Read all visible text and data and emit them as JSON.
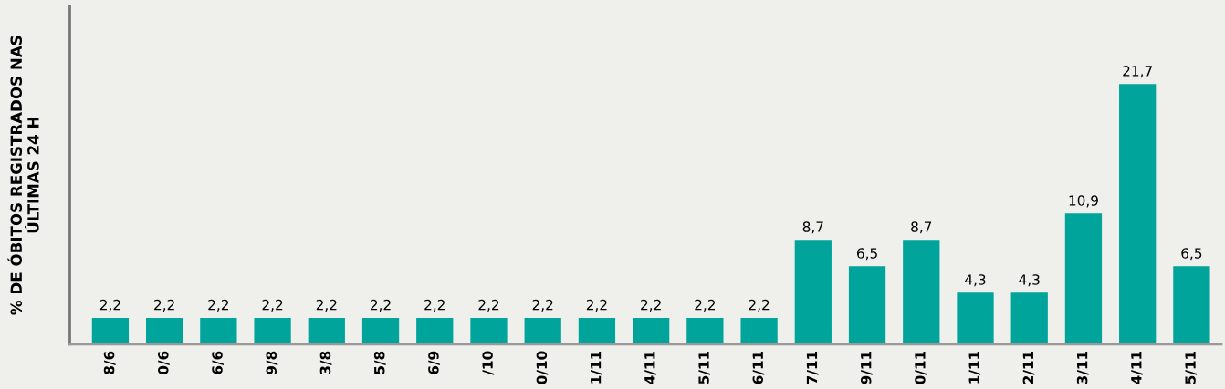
{
  "chart_data": {
    "type": "bar",
    "ylabel": "% DE ÓBITOS REGISTRADOS NAS\nÚLTIMAS 24 H",
    "categories": [
      "8/6",
      "0/6",
      "6/6",
      "9/8",
      "3/8",
      "5/8",
      "6/9",
      "/10",
      "0/10",
      "1/11",
      "4/11",
      "5/11",
      "6/11",
      "7/11",
      "9/11",
      "0/11",
      "1/11",
      "2/11",
      "3/11",
      "4/11",
      "5/11"
    ],
    "values": [
      2.2,
      2.2,
      2.2,
      2.2,
      2.2,
      2.2,
      2.2,
      2.2,
      2.2,
      2.2,
      2.2,
      2.2,
      2.2,
      8.7,
      6.5,
      8.7,
      4.3,
      4.3,
      10.9,
      21.7,
      6.5
    ],
    "value_labels": [
      "2,2",
      "2,2",
      "2,2",
      "2,2",
      "2,2",
      "2,2",
      "2,2",
      "2,2",
      "2,2",
      "2,2",
      "2,2",
      "2,2",
      "2,2",
      "8,7",
      "6,5",
      "8,7",
      "4,3",
      "4,3",
      "10,9",
      "21,7",
      "6,5"
    ],
    "color": "#00a49a",
    "tick_labels": "x",
    "grid": false,
    "legend": false
  }
}
